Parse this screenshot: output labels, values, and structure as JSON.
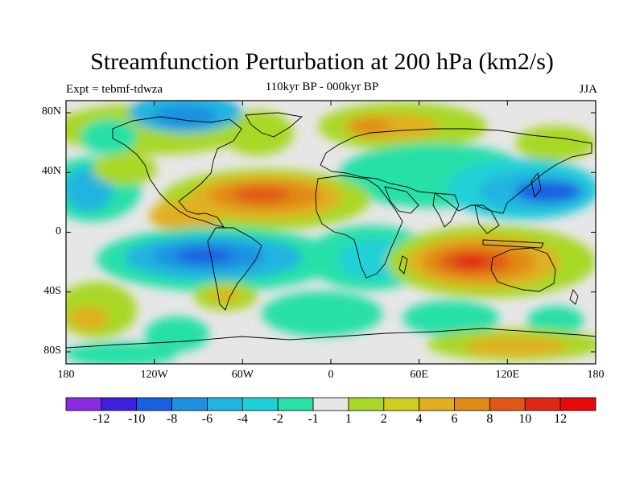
{
  "title": "Streamfunction Perturbation at 200 hPa (km2/s)",
  "subtitle": "110kyr BP - 000kyr BP",
  "left_label": "Expt = tebmf-tdwza",
  "right_label": "JJA",
  "lat_ticks": [
    "80N",
    "40N",
    "0",
    "40S",
    "80S"
  ],
  "lon_ticks": [
    "180",
    "120W",
    "60W",
    "0",
    "60E",
    "120E",
    "180"
  ],
  "colorbar": {
    "labels": [
      "-12",
      "-10",
      "-8",
      "-6",
      "-4",
      "-2",
      "-1",
      "1",
      "2",
      "4",
      "6",
      "8",
      "10",
      "12"
    ],
    "colors": [
      "#8a2be2",
      "#3c20e0",
      "#1a5fe0",
      "#1e90e0",
      "#20b4e0",
      "#20d0d8",
      "#28e0a8",
      "#e6e6e6",
      "#a8d828",
      "#d0cc20",
      "#e0b020",
      "#e08a18",
      "#e05818",
      "#e02818",
      "#e80a0a"
    ]
  },
  "colors": {
    "land_outline": "#000000",
    "background": "#ffffff",
    "neutral": "#e6e6e6"
  }
}
